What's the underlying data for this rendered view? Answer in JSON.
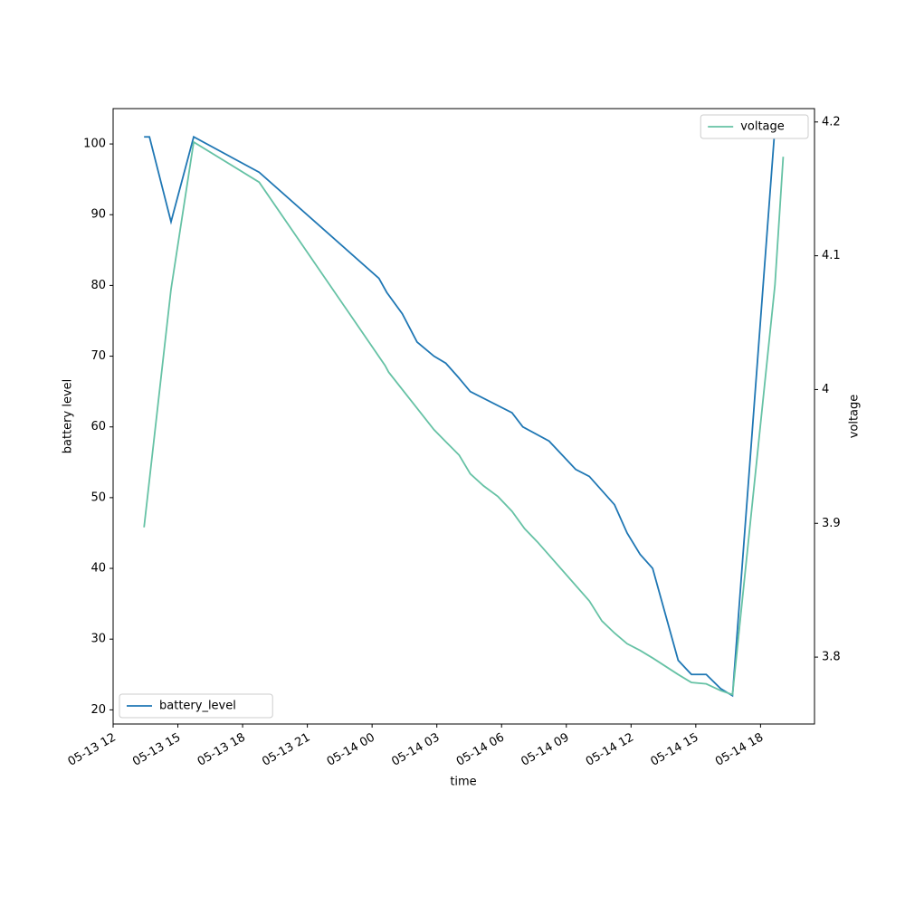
{
  "chart_data": {
    "type": "line",
    "xlabel": "time",
    "ylabel": "battery level",
    "y2label": "voltage",
    "xlim": [
      "05-13 12:00",
      "05-14 20:30"
    ],
    "xticks": [
      {
        "value": "05-13 12:00",
        "label": "05-13 12"
      },
      {
        "value": "05-13 15:00",
        "label": "05-13 15"
      },
      {
        "value": "05-13 18:00",
        "label": "05-13 18"
      },
      {
        "value": "05-13 21:00",
        "label": "05-13 21"
      },
      {
        "value": "05-14 00:00",
        "label": "05-14 00"
      },
      {
        "value": "05-14 03:00",
        "label": "05-14 03"
      },
      {
        "value": "05-14 06:00",
        "label": "05-14 06"
      },
      {
        "value": "05-14 09:00",
        "label": "05-14 09"
      },
      {
        "value": "05-14 12:00",
        "label": "05-14 12"
      },
      {
        "value": "05-14 15:00",
        "label": "05-14 15"
      },
      {
        "value": "05-14 18:00",
        "label": "05-14 18"
      }
    ],
    "ylim": [
      18,
      105
    ],
    "yticks": [
      20,
      30,
      40,
      50,
      60,
      70,
      80,
      90,
      100
    ],
    "y2lim": [
      3.75,
      4.21
    ],
    "y2ticks": [
      3.8,
      3.9,
      4.0,
      4.1,
      4.2
    ],
    "series": [
      {
        "name": "battery_level",
        "color": "#1f77b4",
        "legend": "lower left",
        "x": [
          "05-13 13:26",
          "05-13 13:41",
          "05-13 14:41",
          "05-13 15:44",
          "05-13 18:46",
          "05-14 00:19",
          "05-14 00:41",
          "05-14 01:24",
          "05-14 02:05",
          "05-14 02:52",
          "05-14 03:25",
          "05-14 04:00",
          "05-14 04:33",
          "05-14 06:29",
          "05-14 06:59",
          "05-14 08:12",
          "05-14 09:26",
          "05-14 10:04",
          "05-14 11:14",
          "05-14 11:49",
          "05-14 12:25",
          "05-14 13:00",
          "05-14 14:11",
          "05-14 14:48",
          "05-14 15:29",
          "05-14 16:09",
          "05-14 16:42",
          "05-14 18:38",
          "05-14 18:50"
        ],
        "values": [
          101,
          101,
          89,
          101,
          96,
          81,
          79,
          76,
          72,
          70,
          69,
          67,
          65,
          62,
          60,
          58,
          54,
          53,
          49,
          45,
          42,
          40,
          27,
          25,
          25,
          23,
          22,
          101,
          101
        ]
      },
      {
        "name": "voltage",
        "color": "#66c2a5",
        "legend": "upper right",
        "axis": "y2",
        "x": [
          "05-13 13:26",
          "05-13 14:41",
          "05-13 15:44",
          "05-13 18:46",
          "05-14 00:36",
          "05-14 00:46",
          "05-14 02:52",
          "05-14 03:25",
          "05-14 04:02",
          "05-14 04:33",
          "05-14 05:10",
          "05-14 05:50",
          "05-14 06:29",
          "05-14 07:04",
          "05-14 07:40",
          "05-14 10:04",
          "05-14 10:39",
          "05-14 11:14",
          "05-14 11:49",
          "05-14 12:25",
          "05-14 13:02",
          "05-14 14:11",
          "05-14 14:48",
          "05-14 15:29",
          "05-14 16:09",
          "05-14 16:42",
          "05-14 18:40",
          "05-14 19:03"
        ],
        "values": [
          3.897,
          4.075,
          4.185,
          4.155,
          4.018,
          4.013,
          3.97,
          3.961,
          3.951,
          3.937,
          3.928,
          3.92,
          3.909,
          3.896,
          3.886,
          3.842,
          3.827,
          3.818,
          3.81,
          3.805,
          3.799,
          3.787,
          3.781,
          3.78,
          3.775,
          3.772,
          4.078,
          4.174
        ]
      }
    ]
  }
}
